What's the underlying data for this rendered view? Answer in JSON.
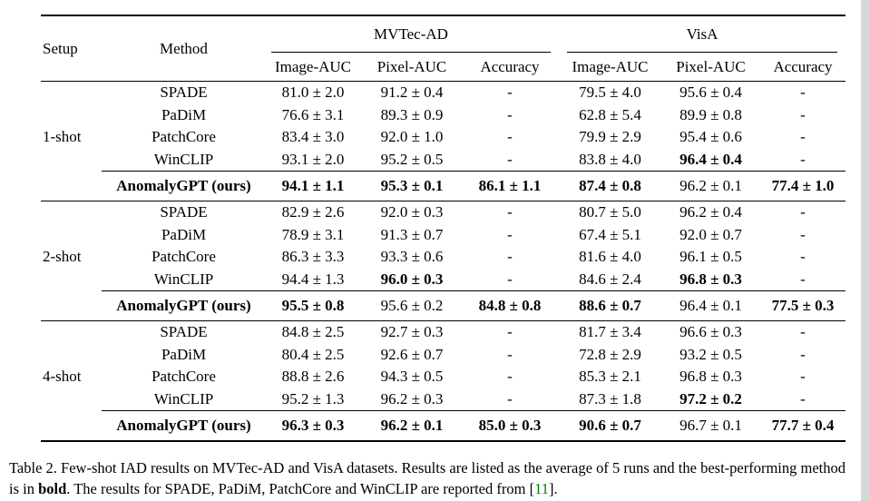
{
  "table": {
    "header": {
      "setup": "Setup",
      "method": "Method",
      "groups": [
        {
          "label": "MVTec-AD",
          "columns": [
            "Image-AUC",
            "Pixel-AUC",
            "Accuracy"
          ]
        },
        {
          "label": "VisA",
          "columns": [
            "Image-AUC",
            "Pixel-AUC",
            "Accuracy"
          ]
        }
      ]
    },
    "blocks": [
      {
        "setup": "1-shot",
        "rows": [
          {
            "method": "SPADE",
            "values": [
              "81.0 ± 2.0",
              "91.2 ± 0.4",
              "-",
              "79.5 ± 4.0",
              "95.6 ± 0.4",
              "-"
            ],
            "bold": [
              0,
              0,
              0,
              0,
              0,
              0
            ]
          },
          {
            "method": "PaDiM",
            "values": [
              "76.6 ± 3.1",
              "89.3 ± 0.9",
              "-",
              "62.8 ± 5.4",
              "89.9 ± 0.8",
              "-"
            ],
            "bold": [
              0,
              0,
              0,
              0,
              0,
              0
            ]
          },
          {
            "method": "PatchCore",
            "values": [
              "83.4 ± 3.0",
              "92.0 ± 1.0",
              "-",
              "79.9 ± 2.9",
              "95.4 ± 0.6",
              "-"
            ],
            "bold": [
              0,
              0,
              0,
              0,
              0,
              0
            ]
          },
          {
            "method": "WinCLIP",
            "values": [
              "93.1 ± 2.0",
              "95.2 ± 0.5",
              "-",
              "83.8 ± 4.0",
              "96.4 ± 0.4",
              "-"
            ],
            "bold": [
              0,
              0,
              0,
              0,
              1,
              0
            ]
          }
        ],
        "ours": {
          "method": "AnomalyGPT (ours)",
          "values": [
            "94.1 ± 1.1",
            "95.3 ± 0.1",
            "86.1 ± 1.1",
            "87.4 ± 0.8",
            "96.2 ± 0.1",
            "77.4 ± 1.0"
          ],
          "bold": [
            1,
            1,
            1,
            1,
            0,
            1
          ]
        }
      },
      {
        "setup": "2-shot",
        "rows": [
          {
            "method": "SPADE",
            "values": [
              "82.9 ± 2.6",
              "92.0 ± 0.3",
              "-",
              "80.7 ± 5.0",
              "96.2 ± 0.4",
              "-"
            ],
            "bold": [
              0,
              0,
              0,
              0,
              0,
              0
            ]
          },
          {
            "method": "PaDiM",
            "values": [
              "78.9 ± 3.1",
              "91.3 ± 0.7",
              "-",
              "67.4 ± 5.1",
              "92.0 ± 0.7",
              "-"
            ],
            "bold": [
              0,
              0,
              0,
              0,
              0,
              0
            ]
          },
          {
            "method": "PatchCore",
            "values": [
              "86.3 ± 3.3",
              "93.3 ± 0.6",
              "-",
              "81.6 ± 4.0",
              "96.1 ± 0.5",
              "-"
            ],
            "bold": [
              0,
              0,
              0,
              0,
              0,
              0
            ]
          },
          {
            "method": "WinCLIP",
            "values": [
              "94.4 ± 1.3",
              "96.0 ± 0.3",
              "-",
              "84.6 ± 2.4",
              "96.8 ± 0.3",
              "-"
            ],
            "bold": [
              0,
              1,
              0,
              0,
              1,
              0
            ]
          }
        ],
        "ours": {
          "method": "AnomalyGPT (ours)",
          "values": [
            "95.5 ± 0.8",
            "95.6 ± 0.2",
            "84.8 ± 0.8",
            "88.6 ± 0.7",
            "96.4 ± 0.1",
            "77.5 ± 0.3"
          ],
          "bold": [
            1,
            0,
            1,
            1,
            0,
            1
          ]
        }
      },
      {
        "setup": "4-shot",
        "rows": [
          {
            "method": "SPADE",
            "values": [
              "84.8 ± 2.5",
              "92.7 ± 0.3",
              "-",
              "81.7 ± 3.4",
              "96.6 ± 0.3",
              "-"
            ],
            "bold": [
              0,
              0,
              0,
              0,
              0,
              0
            ]
          },
          {
            "method": "PaDiM",
            "values": [
              "80.4 ± 2.5",
              "92.6 ± 0.7",
              "-",
              "72.8 ± 2.9",
              "93.2 ± 0.5",
              "-"
            ],
            "bold": [
              0,
              0,
              0,
              0,
              0,
              0
            ]
          },
          {
            "method": "PatchCore",
            "values": [
              "88.8 ± 2.6",
              "94.3 ± 0.5",
              "-",
              "85.3 ± 2.1",
              "96.8 ± 0.3",
              "-"
            ],
            "bold": [
              0,
              0,
              0,
              0,
              0,
              0
            ]
          },
          {
            "method": "WinCLIP",
            "values": [
              "95.2 ± 1.3",
              "96.2 ± 0.3",
              "-",
              "87.3 ± 1.8",
              "97.2 ± 0.2",
              "-"
            ],
            "bold": [
              0,
              0,
              0,
              0,
              1,
              0
            ]
          }
        ],
        "ours": {
          "method": "AnomalyGPT (ours)",
          "values": [
            "96.3 ± 0.3",
            "96.2 ± 0.1",
            "85.0 ± 0.3",
            "90.6 ± 0.7",
            "96.7 ± 0.1",
            "77.7 ± 0.4"
          ],
          "bold": [
            1,
            1,
            1,
            1,
            0,
            1
          ]
        }
      }
    ]
  },
  "caption": {
    "line1": "Table 2. Few-shot IAD results on MVTec-AD and VisA datasets. Results are listed as the average of 5 runs and the best-performing method",
    "line2_pre": "is in ",
    "line2_bold": "bold",
    "line2_mid": ". The results for SPADE, PaDiM, PatchCore and WinCLIP are reported from [",
    "citation": "11",
    "line2_end": "]."
  },
  "colors": {
    "text": "#000000",
    "citation_green": "#008000",
    "page_background": "#ffffff",
    "right_edge_strip": "#d7d7d7"
  }
}
